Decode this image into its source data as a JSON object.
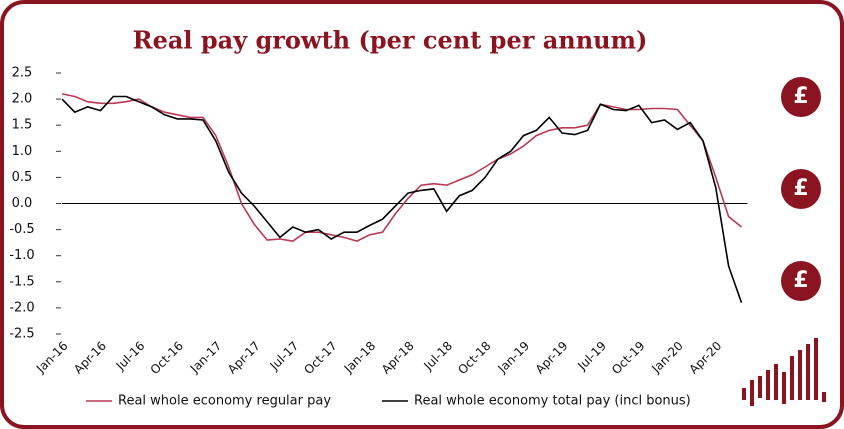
{
  "chart_data": {
    "type": "line",
    "title": "Real pay growth (per cent per annum)",
    "categories": [
      "Jan-16",
      null,
      null,
      "Apr-16",
      null,
      null,
      "Jul-16",
      null,
      null,
      "Oct-16",
      null,
      null,
      "Jan-17",
      null,
      null,
      "Apr-17",
      null,
      null,
      "Jul-17",
      null,
      null,
      "Oct-17",
      null,
      null,
      "Jan-18",
      null,
      null,
      "Apr-18",
      null,
      null,
      "Jul-18",
      null,
      null,
      "Oct-18",
      null,
      null,
      "Jan-19",
      null,
      null,
      "Apr-19",
      null,
      null,
      "Jul-19",
      null,
      null,
      "Oct-19",
      null,
      null,
      "Jan-20",
      null,
      null,
      "Apr-20",
      null,
      null
    ],
    "series": [
      {
        "name": "Real whole economy regular pay",
        "color": "#b83a55",
        "values": [
          2.1,
          2.05,
          1.95,
          1.92,
          1.92,
          1.95,
          2.0,
          1.85,
          1.75,
          1.7,
          1.65,
          1.65,
          1.3,
          0.7,
          0.0,
          -0.4,
          -0.7,
          -0.68,
          -0.72,
          -0.55,
          -0.55,
          -0.6,
          -0.65,
          -0.72,
          -0.6,
          -0.55,
          -0.2,
          0.1,
          0.35,
          0.38,
          0.35,
          0.45,
          0.55,
          0.7,
          0.85,
          0.95,
          1.1,
          1.3,
          1.4,
          1.45,
          1.45,
          1.5,
          1.9,
          1.85,
          1.8,
          1.8,
          1.82,
          1.82,
          1.8,
          1.5,
          1.2,
          0.5,
          -0.25,
          -0.45
        ]
      },
      {
        "name": "Real whole economy total pay (incl bonus)",
        "color": "#000000",
        "values": [
          2.0,
          1.75,
          1.85,
          1.78,
          2.05,
          2.05,
          1.95,
          1.85,
          1.7,
          1.62,
          1.62,
          1.6,
          1.2,
          0.6,
          0.2,
          -0.05,
          -0.35,
          -0.65,
          -0.45,
          -0.55,
          -0.5,
          -0.68,
          -0.55,
          -0.55,
          -0.42,
          -0.3,
          -0.05,
          0.2,
          0.25,
          0.28,
          -0.15,
          0.15,
          0.25,
          0.5,
          0.85,
          1.0,
          1.3,
          1.4,
          1.65,
          1.35,
          1.32,
          1.4,
          1.9,
          1.8,
          1.78,
          1.88,
          1.55,
          1.6,
          1.42,
          1.55,
          1.2,
          0.3,
          -1.2,
          -1.9
        ]
      }
    ],
    "ylim": [
      -2.5,
      2.5
    ],
    "yticks": [
      2.5,
      {
        "value": 2,
        "label": "2.0"
      },
      1.5,
      {
        "value": 1,
        "label": "1.0"
      },
      0.5,
      {
        "value": 0,
        "label": "0.0"
      },
      -0.5,
      {
        "value": -1,
        "label": "-1.0"
      },
      -1.5,
      {
        "value": -2,
        "label": "-2.0"
      },
      -2.5
    ]
  }
}
